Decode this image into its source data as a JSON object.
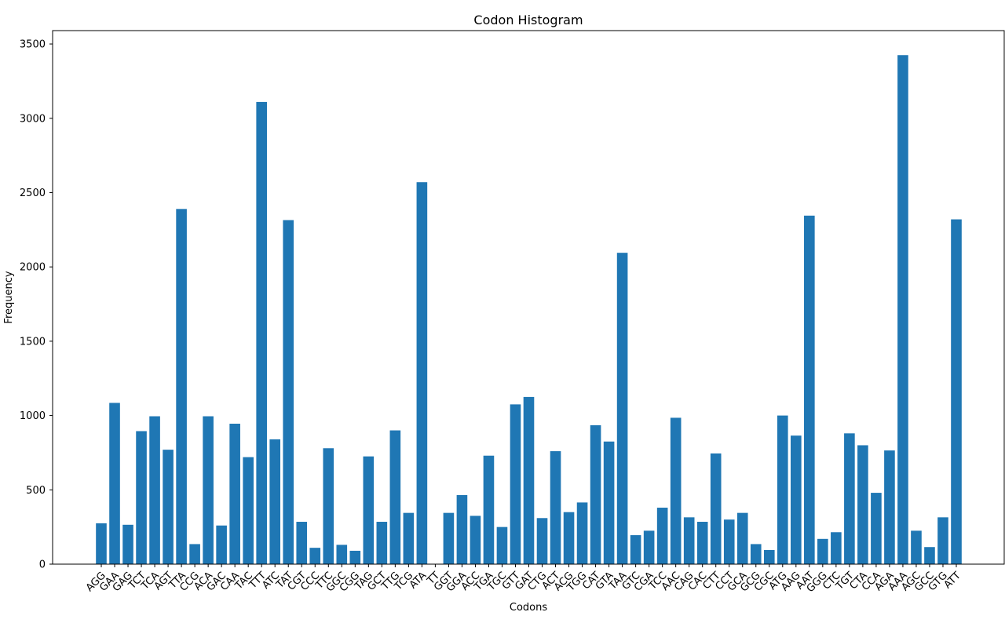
{
  "chart_data": {
    "type": "bar",
    "title": "Codon Histogram",
    "xlabel": "Codons",
    "ylabel": "Frequency",
    "ylim": [
      0,
      3590
    ],
    "yticks": [
      0,
      500,
      1000,
      1500,
      2000,
      2500,
      3000,
      3500
    ],
    "grid": false,
    "bar_color": "#1f77b4",
    "categories": [
      "AGG",
      "GAA",
      "GAG",
      "TCT",
      "TCA",
      "AGT",
      "TTA",
      "CCG",
      "ACA",
      "GAC",
      "CAA",
      "TAC",
      "TTT",
      "ATC",
      "TAT",
      "CGT",
      "CCC",
      "TTC",
      "GGC",
      "CGG",
      "TAG",
      "GCT",
      "TTG",
      "TCG",
      "ATA",
      "TT",
      "GGT",
      "GGA",
      "ACC",
      "TGA",
      "TGC",
      "GTT",
      "GAT",
      "CTG",
      "ACT",
      "ACG",
      "TGG",
      "CAT",
      "GTA",
      "TAA",
      "GTC",
      "CGA",
      "TCC",
      "AAC",
      "CAG",
      "CAC",
      "CTT",
      "CCT",
      "GCA",
      "GCG",
      "CGC",
      "ATG",
      "AAG",
      "AAT",
      "GGG",
      "CTC",
      "TGT",
      "CTA",
      "CCA",
      "AGA",
      "AAA",
      "AGC",
      "GCC",
      "GTG",
      "ATT"
    ],
    "values": [
      275,
      1085,
      265,
      895,
      995,
      770,
      2390,
      135,
      995,
      260,
      945,
      720,
      3110,
      840,
      2315,
      285,
      110,
      780,
      130,
      90,
      725,
      285,
      900,
      345,
      2570,
      0,
      345,
      465,
      325,
      730,
      250,
      1075,
      1125,
      310,
      760,
      350,
      415,
      935,
      825,
      2095,
      195,
      225,
      380,
      985,
      315,
      285,
      745,
      300,
      345,
      135,
      95,
      1000,
      865,
      2345,
      170,
      215,
      880,
      800,
      480,
      765,
      3425,
      225,
      115,
      315,
      2320
    ]
  }
}
